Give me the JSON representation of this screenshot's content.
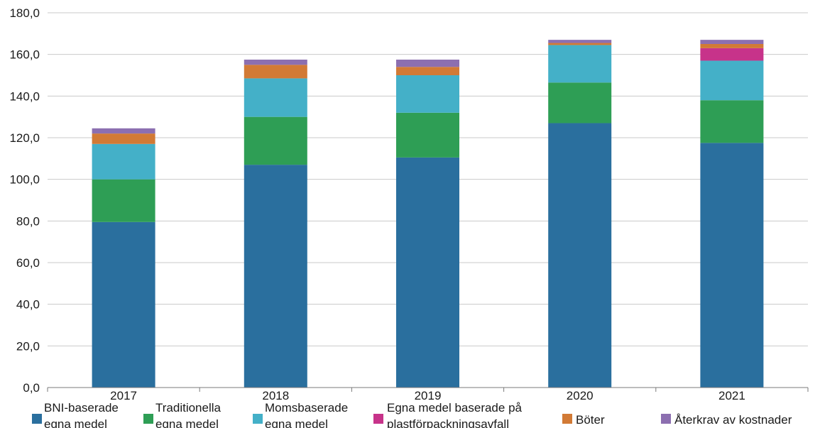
{
  "chart_data": {
    "type": "bar",
    "stacked": true,
    "categories": [
      "2017",
      "2018",
      "2019",
      "2020",
      "2021"
    ],
    "series": [
      {
        "name": "BNI-baserade egna medel",
        "legend_lines": [
          "BNI-baserade",
          "egna medel"
        ],
        "color": "#2a6f9e",
        "values": [
          79.5,
          107.0,
          110.5,
          127.0,
          117.5
        ]
      },
      {
        "name": "Traditionella egna medel",
        "legend_lines": [
          "Traditionella",
          "egna medel"
        ],
        "color": "#2e9e55",
        "values": [
          20.5,
          23.0,
          21.5,
          19.5,
          20.5
        ]
      },
      {
        "name": "Momsbaserade egna medel",
        "legend_lines": [
          "Momsbaserade",
          "egna medel"
        ],
        "color": "#44b0c8",
        "values": [
          17.0,
          18.5,
          18.0,
          18.0,
          19.0
        ]
      },
      {
        "name": "Egna medel baserade på plastförpackningsavfall",
        "legend_lines": [
          "Egna medel baserade på",
          "plastförpackningsavfall"
        ],
        "color": "#c7338a",
        "values": [
          0,
          0,
          0,
          0,
          6.0
        ]
      },
      {
        "name": "Böter",
        "legend_lines": [
          "Böter"
        ],
        "color": "#d27a35",
        "values": [
          5.0,
          6.5,
          4.0,
          1.0,
          2.0
        ]
      },
      {
        "name": "Återkrav av kostnader",
        "legend_lines": [
          "Återkrav av kostnader"
        ],
        "color": "#8c6fb0",
        "values": [
          2.5,
          2.5,
          3.5,
          1.5,
          2.0
        ]
      }
    ],
    "y_ticks": [
      "0,0",
      "20,0",
      "40,0",
      "60,0",
      "80,0",
      "100,0",
      "120,0",
      "140,0",
      "160,0",
      "180,0"
    ],
    "ylim": [
      0,
      180
    ],
    "grid": true,
    "legend_position": "bottom"
  }
}
